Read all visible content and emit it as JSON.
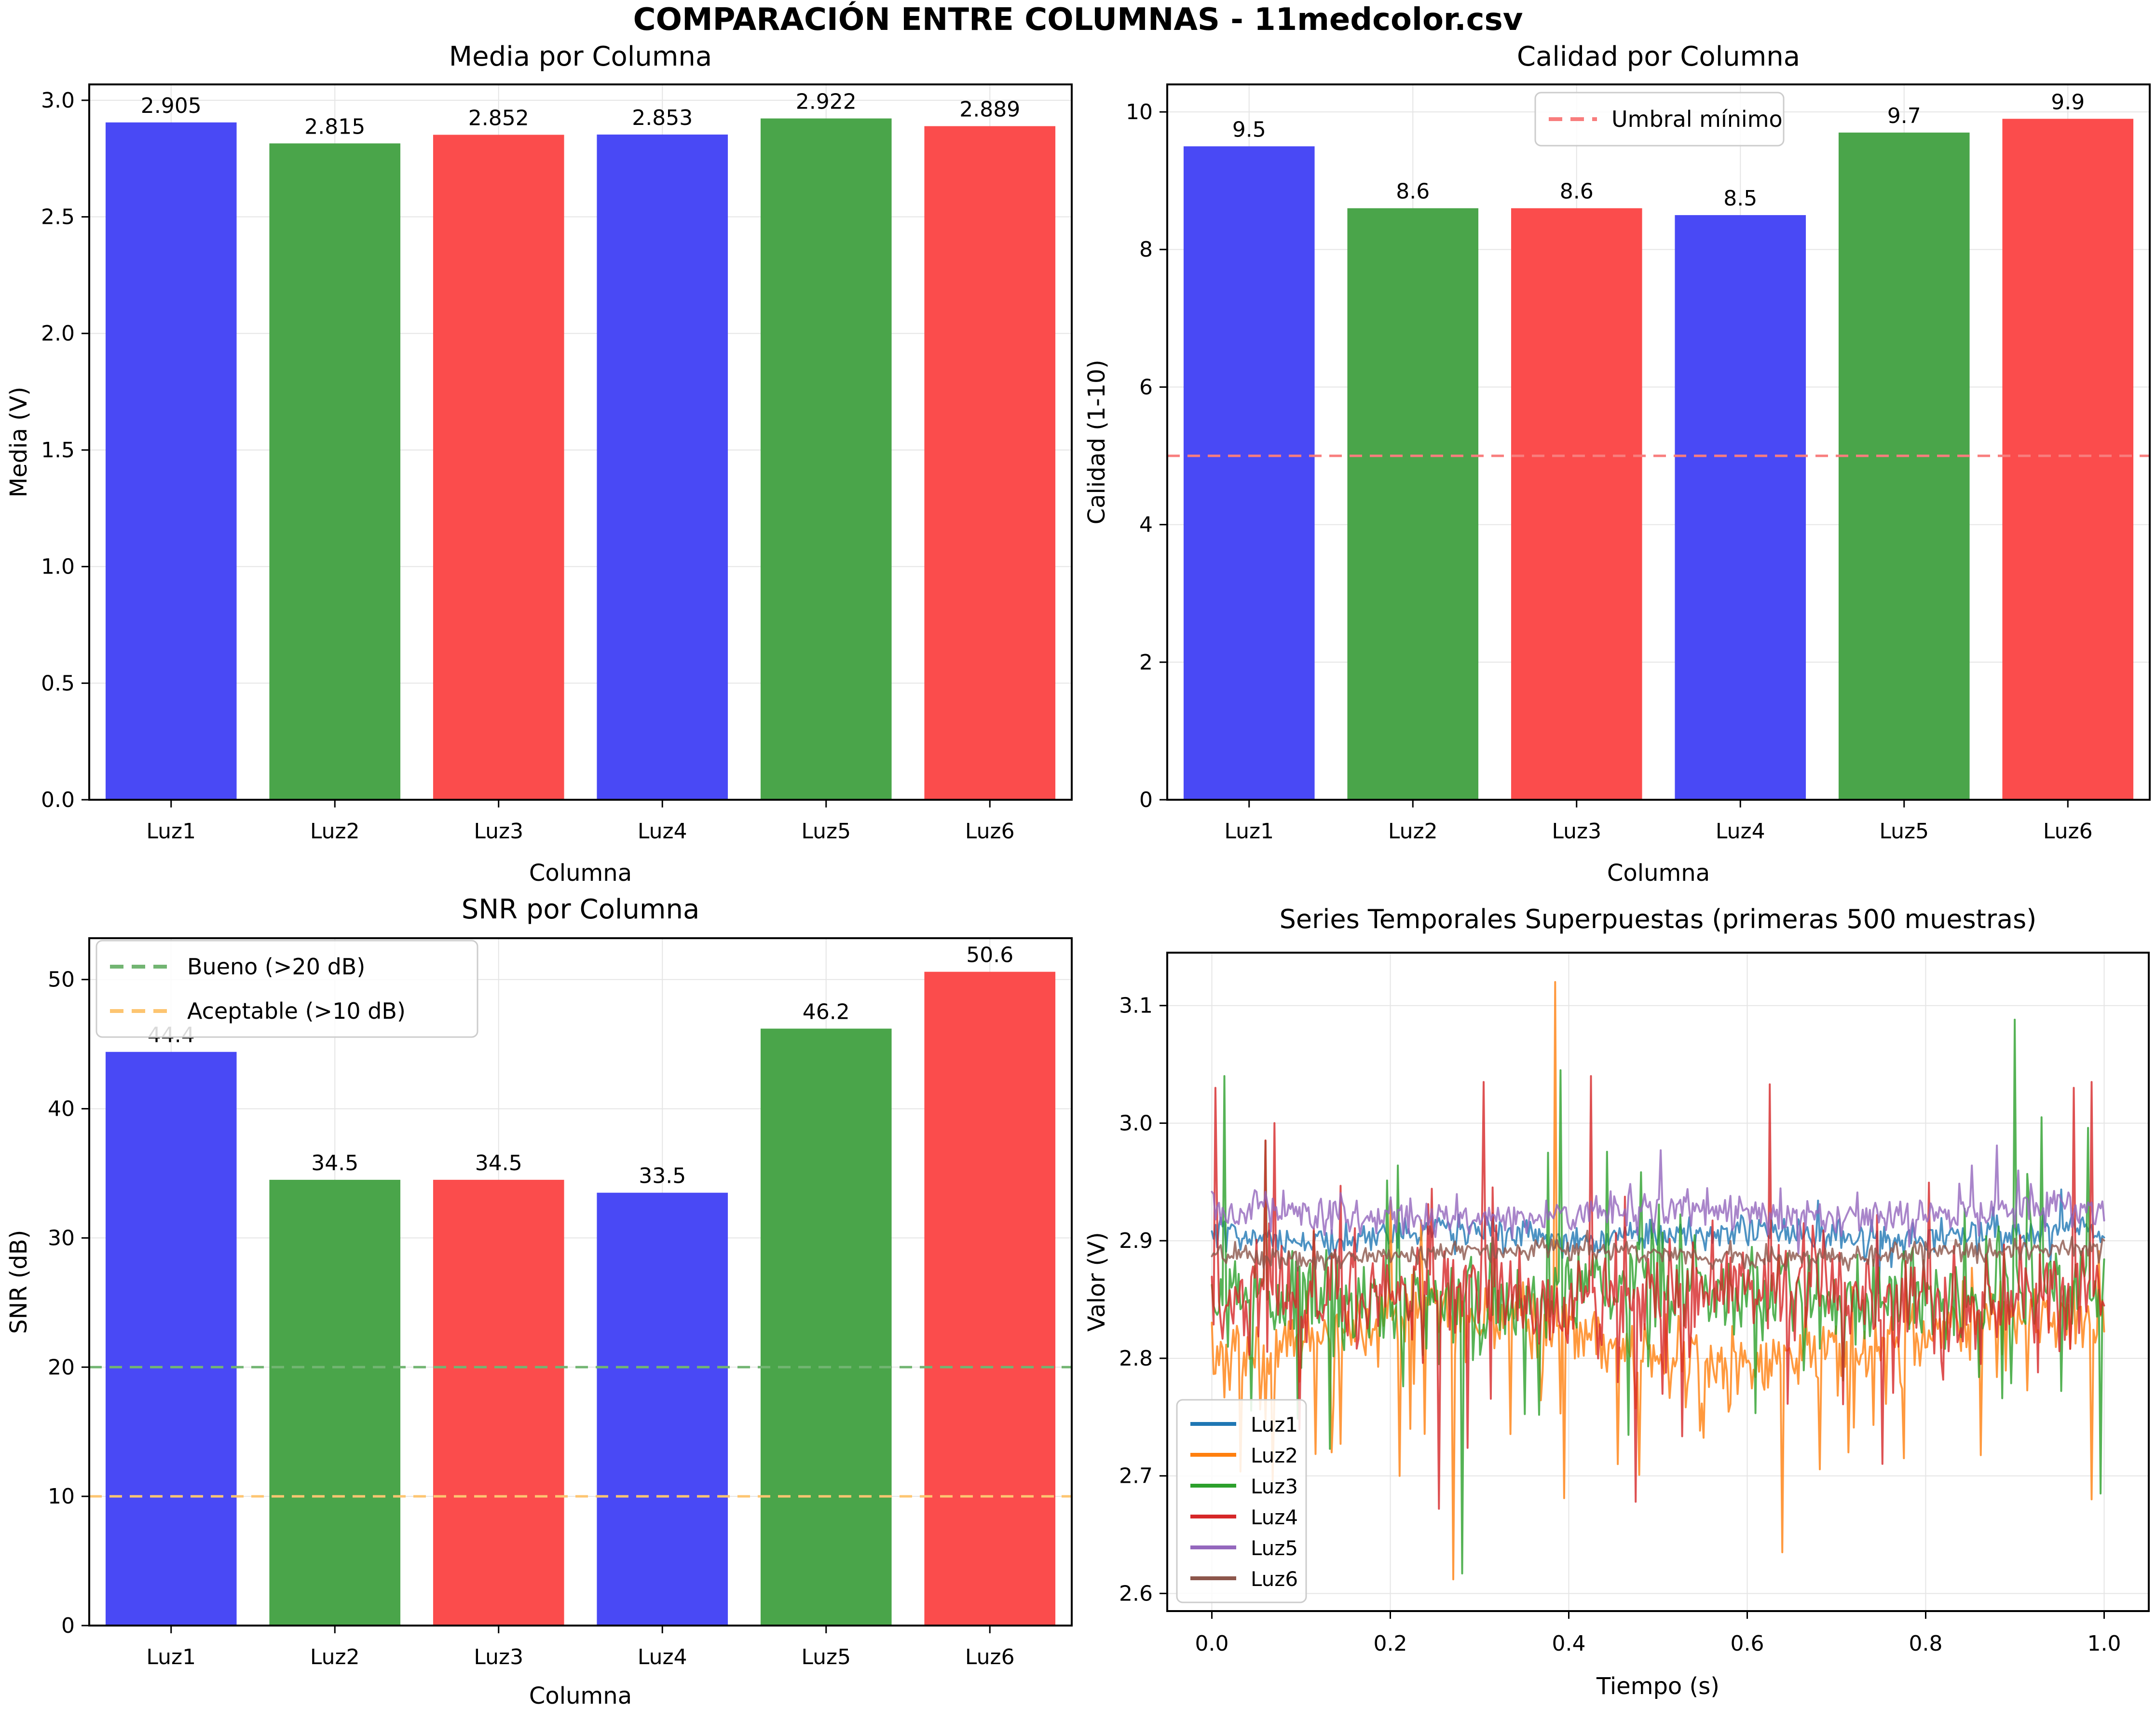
{
  "figure": {
    "title": "COMPARACIÓN ENTRE COLUMNAS - 11medcolor.csv",
    "background": "#ffffff"
  },
  "palette": {
    "bar_blue": "#4949f5",
    "bar_green": "#4aa54a",
    "bar_red": "#fb4c4c",
    "threshold_red": "#f87d7d",
    "threshold_green": "#72b572",
    "threshold_orange": "#fdc571",
    "grid": "#e5e5e5",
    "axis": "#000000",
    "legend_border": "#cccccc"
  },
  "chart_data": [
    {
      "type": "bar",
      "title": "Media por Columna",
      "xlabel": "Columna",
      "ylabel": "Media (V)",
      "categories": [
        "Luz1",
        "Luz2",
        "Luz3",
        "Luz4",
        "Luz5",
        "Luz6"
      ],
      "values": [
        2.905,
        2.815,
        2.852,
        2.853,
        2.922,
        2.889
      ],
      "value_labels": [
        "2.905",
        "2.815",
        "2.852",
        "2.853",
        "2.922",
        "2.889"
      ],
      "bar_color_keys": [
        "bar_blue",
        "bar_green",
        "bar_red",
        "bar_blue",
        "bar_green",
        "bar_red"
      ],
      "ylim": [
        0,
        3.068
      ],
      "yticks": [
        {
          "v": 0.0,
          "label": "0.0"
        },
        {
          "v": 0.5,
          "label": "0.5"
        },
        {
          "v": 1.0,
          "label": "1.0"
        },
        {
          "v": 1.5,
          "label": "1.5"
        },
        {
          "v": 2.0,
          "label": "2.0"
        },
        {
          "v": 2.5,
          "label": "2.5"
        },
        {
          "v": 3.0,
          "label": "3.0"
        }
      ],
      "grid": true
    },
    {
      "type": "bar",
      "title": "Calidad por Columna",
      "xlabel": "Columna",
      "ylabel": "Calidad (1-10)",
      "categories": [
        "Luz1",
        "Luz2",
        "Luz3",
        "Luz4",
        "Luz5",
        "Luz6"
      ],
      "values": [
        9.5,
        8.6,
        8.6,
        8.5,
        9.7,
        9.9
      ],
      "value_labels": [
        "9.5",
        "8.6",
        "8.6",
        "8.5",
        "9.7",
        "9.9"
      ],
      "bar_color_keys": [
        "bar_blue",
        "bar_green",
        "bar_red",
        "bar_blue",
        "bar_green",
        "bar_red"
      ],
      "ylim": [
        0,
        10.4
      ],
      "yticks": [
        {
          "v": 0,
          "label": "0"
        },
        {
          "v": 2,
          "label": "2"
        },
        {
          "v": 4,
          "label": "4"
        },
        {
          "v": 6,
          "label": "6"
        },
        {
          "v": 8,
          "label": "8"
        },
        {
          "v": 10,
          "label": "10"
        }
      ],
      "thresholds": [
        {
          "value": 5,
          "label": "Umbral mínimo",
          "color_key": "threshold_red"
        }
      ],
      "legend": {
        "entries": [
          {
            "label": "Umbral mínimo",
            "color_key": "threshold_red",
            "dashed": true
          }
        ]
      },
      "grid": true
    },
    {
      "type": "bar",
      "title": "SNR por Columna",
      "xlabel": "Columna",
      "ylabel": "SNR (dB)",
      "categories": [
        "Luz1",
        "Luz2",
        "Luz3",
        "Luz4",
        "Luz5",
        "Luz6"
      ],
      "values": [
        44.4,
        34.5,
        34.5,
        33.5,
        46.2,
        50.6
      ],
      "value_labels": [
        "44.4",
        "34.5",
        "34.5",
        "33.5",
        "46.2",
        "50.6"
      ],
      "bar_color_keys": [
        "bar_blue",
        "bar_green",
        "bar_red",
        "bar_blue",
        "bar_green",
        "bar_red"
      ],
      "ylim": [
        0,
        53.2
      ],
      "yticks": [
        {
          "v": 0,
          "label": "0"
        },
        {
          "v": 10,
          "label": "10"
        },
        {
          "v": 20,
          "label": "20"
        },
        {
          "v": 30,
          "label": "30"
        },
        {
          "v": 40,
          "label": "40"
        },
        {
          "v": 50,
          "label": "50"
        }
      ],
      "thresholds": [
        {
          "value": 20,
          "label": "Bueno (>20 dB)",
          "color_key": "threshold_green"
        },
        {
          "value": 10,
          "label": "Aceptable (>10 dB)",
          "color_key": "threshold_orange"
        }
      ],
      "legend": {
        "entries": [
          {
            "label": "Bueno (>20 dB)",
            "color_key": "threshold_green",
            "dashed": true
          },
          {
            "label": "Aceptable (>10 dB)",
            "color_key": "threshold_orange",
            "dashed": true
          }
        ]
      },
      "grid": true
    },
    {
      "type": "line",
      "title": "Series Temporales Superpuestas (primeras 500 muestras)",
      "xlabel": "Tiempo (s)",
      "ylabel": "Valor (V)",
      "n_samples": 500,
      "xlim": [
        -0.05,
        1.05
      ],
      "ylim": [
        2.585,
        3.145
      ],
      "xticks": [
        {
          "v": 0.0,
          "label": "0.0"
        },
        {
          "v": 0.2,
          "label": "0.2"
        },
        {
          "v": 0.4,
          "label": "0.4"
        },
        {
          "v": 0.6,
          "label": "0.6"
        },
        {
          "v": 0.8,
          "label": "0.8"
        },
        {
          "v": 1.0,
          "label": "1.0"
        }
      ],
      "yticks": [
        {
          "v": 2.6,
          "label": "2.6"
        },
        {
          "v": 2.7,
          "label": "2.7"
        },
        {
          "v": 2.8,
          "label": "2.8"
        },
        {
          "v": 2.9,
          "label": "2.9"
        },
        {
          "v": 3.0,
          "label": "3.0"
        },
        {
          "v": 3.1,
          "label": "3.1"
        }
      ],
      "line_alpha": 0.8,
      "series": [
        {
          "name": "Luz1",
          "color": "#1f77b4",
          "mean": 2.905,
          "noise_std": 0.007,
          "drift_amp": 0.004,
          "drift_freq": 3.0,
          "spike_prob": 0.012,
          "spike_min": 0.01,
          "spike_max": 0.035,
          "up_frac": 0.5,
          "seed": 101
        },
        {
          "name": "Luz2",
          "color": "#ff7f0e",
          "mean": 2.816,
          "noise_std": 0.016,
          "drift_amp": 0.022,
          "drift_freq": 1.5,
          "spike_prob": 0.07,
          "spike_min": 0.02,
          "spike_max": 0.12,
          "up_frac": 0.08,
          "seed": 202,
          "marked_points": [
            {
              "x": 0.135,
              "v": 2.72
            },
            {
              "x": 0.21,
              "v": 2.7
            },
            {
              "x": 0.27,
              "v": 2.612
            },
            {
              "x": 0.385,
              "v": 3.12
            },
            {
              "x": 0.455,
              "v": 2.71
            },
            {
              "x": 0.64,
              "v": 2.635
            },
            {
              "x": 0.775,
              "v": 2.715
            },
            {
              "x": 0.985,
              "v": 2.68
            }
          ]
        },
        {
          "name": "Luz3",
          "color": "#2ca02c",
          "mean": 2.852,
          "noise_std": 0.021,
          "drift_amp": 0.008,
          "drift_freq": 2.0,
          "spike_prob": 0.085,
          "spike_min": 0.02,
          "spike_max": 0.12,
          "up_frac": 0.45,
          "seed": 303,
          "marked_points": [
            {
              "x": 0.015,
              "v": 3.04
            },
            {
              "x": 0.06,
              "v": 2.985
            },
            {
              "x": 0.28,
              "v": 2.617
            },
            {
              "x": 0.39,
              "v": 3.045
            },
            {
              "x": 0.9,
              "v": 3.088
            },
            {
              "x": 0.93,
              "v": 3.005
            },
            {
              "x": 0.995,
              "v": 2.685
            }
          ]
        },
        {
          "name": "Luz4",
          "color": "#d62728",
          "mean": 2.853,
          "noise_std": 0.021,
          "drift_amp": 0.008,
          "drift_freq": 2.4,
          "spike_prob": 0.085,
          "spike_min": 0.02,
          "spike_max": 0.12,
          "up_frac": 0.4,
          "seed": 404,
          "marked_points": [
            {
              "x": 0.005,
              "v": 3.03
            },
            {
              "x": 0.07,
              "v": 3.0
            },
            {
              "x": 0.255,
              "v": 2.672
            },
            {
              "x": 0.305,
              "v": 3.035
            },
            {
              "x": 0.425,
              "v": 3.04
            },
            {
              "x": 0.475,
              "v": 2.678
            },
            {
              "x": 0.625,
              "v": 3.033
            },
            {
              "x": 0.965,
              "v": 3.03
            },
            {
              "x": 0.985,
              "v": 3.035
            }
          ]
        },
        {
          "name": "Luz5",
          "color": "#9467bd",
          "mean": 2.922,
          "noise_std": 0.009,
          "drift_amp": 0.005,
          "drift_freq": 2.2,
          "spike_prob": 0.02,
          "spike_min": 0.01,
          "spike_max": 0.045,
          "up_frac": 0.6,
          "seed": 505
        },
        {
          "name": "Luz6",
          "color": "#8c564b",
          "mean": 2.889,
          "noise_std": 0.005,
          "drift_amp": 0.004,
          "drift_freq": 1.8,
          "spike_prob": 0.0,
          "spike_min": 0,
          "spike_max": 0,
          "up_frac": 0.5,
          "seed": 606
        }
      ],
      "legend": {
        "entries": [
          {
            "label": "Luz1",
            "color": "#1f77b4"
          },
          {
            "label": "Luz2",
            "color": "#ff7f0e"
          },
          {
            "label": "Luz3",
            "color": "#2ca02c"
          },
          {
            "label": "Luz4",
            "color": "#d62728"
          },
          {
            "label": "Luz5",
            "color": "#9467bd"
          },
          {
            "label": "Luz6",
            "color": "#8c564b"
          }
        ]
      }
    }
  ]
}
